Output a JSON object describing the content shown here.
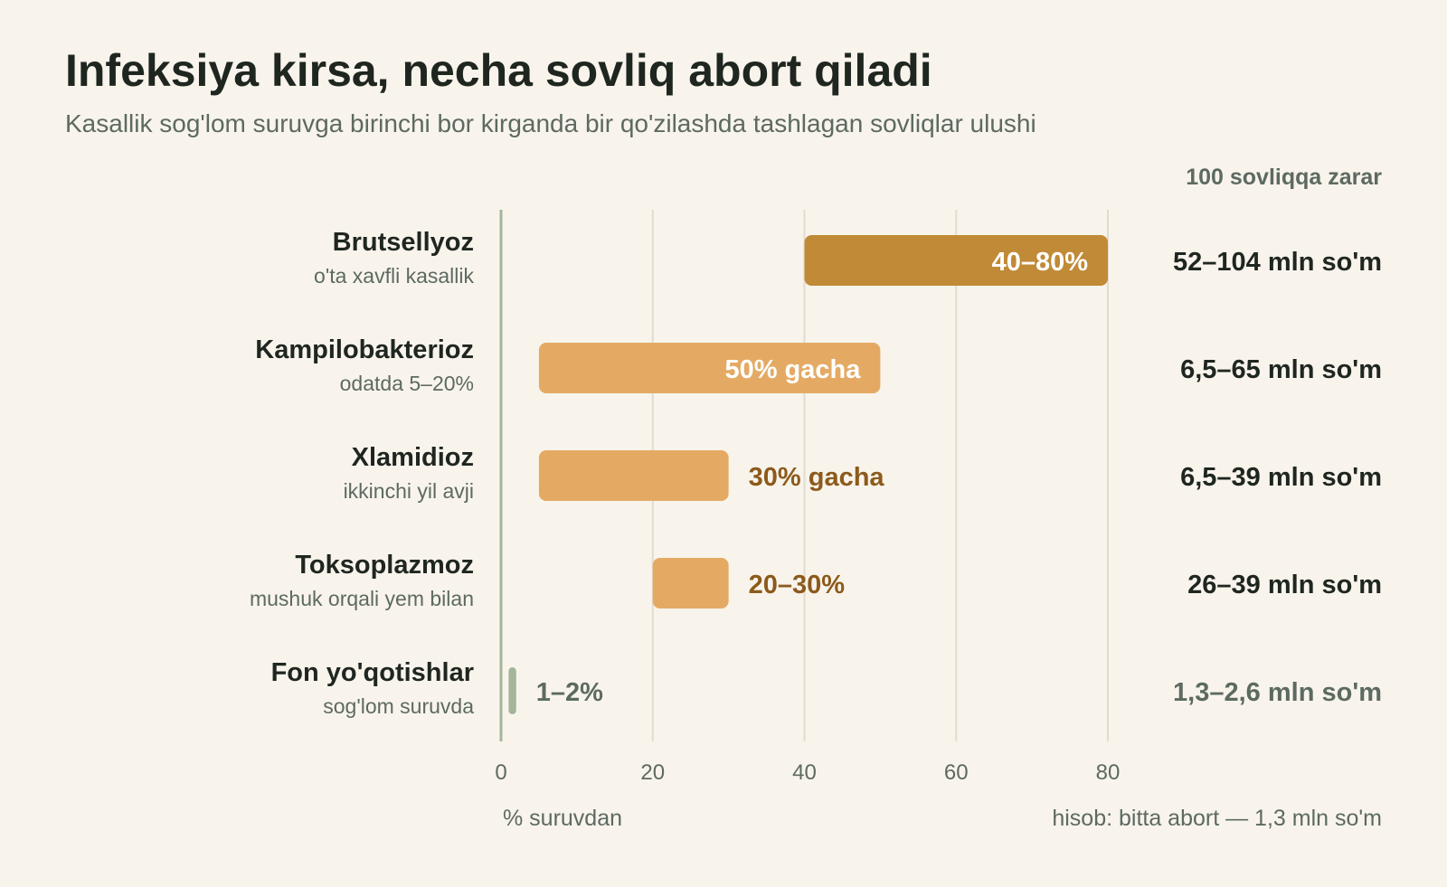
{
  "colors": {
    "background": "#f8f4ec",
    "primary_bar": "#c08a36",
    "secondary_bar": "#e4aa64",
    "baseline_bar": "#a3b59a",
    "inside_label": "#ffffff",
    "outside_label": "#8c5a1c",
    "muted_label": "#5d6a60",
    "dark_text": "#1f2620",
    "grid": "#e2dccf",
    "axis": "#a3b59a"
  },
  "chart_data": {
    "type": "bar",
    "orientation": "horizontal",
    "title": "Infeksiya kirsa, necha sovliq abort qiladi",
    "subtitle": "Kasallik sog'lom suruvga birinchi bor kirganda bir qo'zilashda tashlagan sovliqlar ulushi",
    "xlabel": "% suruvdan",
    "xlim": [
      0,
      80
    ],
    "xticks": [
      "0",
      "20",
      "40",
      "60",
      "80"
    ],
    "grid": true,
    "right_column_header": "100 sovliqqa zarar",
    "footnote": "hisob: bitta abort — 1,3 mln so'm",
    "categories": [
      {
        "name": "Brutsellyoz",
        "note": "o'ta xavfli kasallik",
        "range": [
          40,
          80
        ],
        "label": "40–80%",
        "damage": "52–104 mln so'm",
        "style": "primary",
        "label_position": "inside"
      },
      {
        "name": "Kampilobakterioz",
        "note": "odatda 5–20%",
        "range": [
          5,
          50
        ],
        "label": "50% gacha",
        "damage": "6,5–65 mln so'm",
        "style": "secondary",
        "label_position": "inside"
      },
      {
        "name": "Xlamidioz",
        "note": "ikkinchi yil avji",
        "range": [
          5,
          30
        ],
        "label": "30% gacha",
        "damage": "6,5–39 mln so'm",
        "style": "secondary",
        "label_position": "outside"
      },
      {
        "name": "Toksoplazmoz",
        "note": "mushuk orqali yem bilan",
        "range": [
          20,
          30
        ],
        "label": "20–30%",
        "damage": "26–39 mln so'm",
        "style": "secondary",
        "label_position": "outside"
      },
      {
        "name": "Fon yo'qotishlar",
        "note": "sog'lom suruvda",
        "range": [
          1,
          2
        ],
        "label": "1–2%",
        "damage": "1,3–2,6 mln so'm",
        "style": "baseline",
        "label_position": "outside"
      }
    ]
  }
}
